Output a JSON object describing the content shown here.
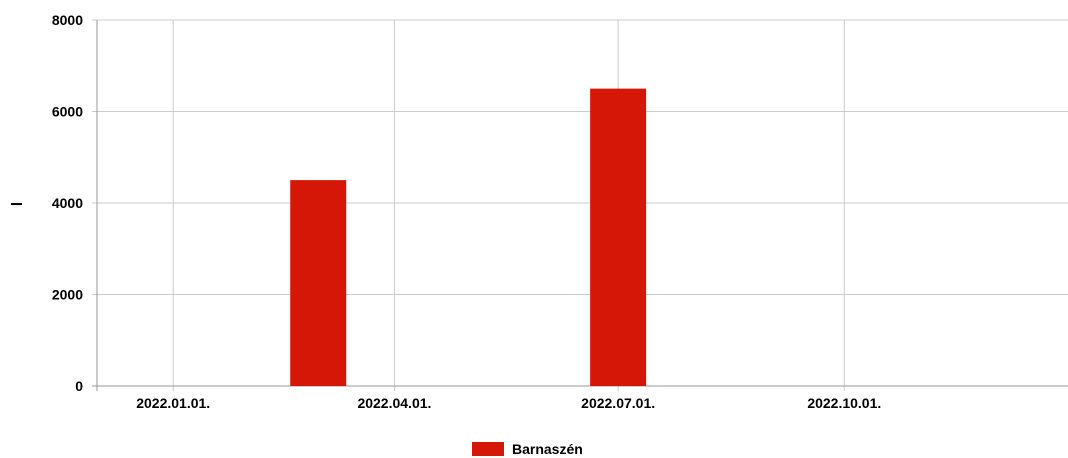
{
  "chart_data": {
    "type": "bar",
    "title": "",
    "xlabel": "",
    "ylabel": "l",
    "ylim": [
      0,
      8000
    ],
    "yticks": [
      "0",
      "2000",
      "4000",
      "6000",
      "8000"
    ],
    "x_tick_labels": [
      "2022.01.01.",
      "2022.04.01.",
      "2022.07.01.",
      "2022.10.01."
    ],
    "x_ticks": [
      "2022-01-01",
      "2022-04-01",
      "2022-07-01",
      "2022-10-01"
    ],
    "xlim": [
      "2021-12-01",
      "2022-12-31"
    ],
    "grid": true,
    "legend_position": "bottom",
    "series": [
      {
        "name": "Barnaszén",
        "color": "#d51707",
        "points": [
          {
            "x": "2022-03-01",
            "y": 4500
          },
          {
            "x": "2022-07-01",
            "y": 6500
          }
        ]
      }
    ]
  }
}
